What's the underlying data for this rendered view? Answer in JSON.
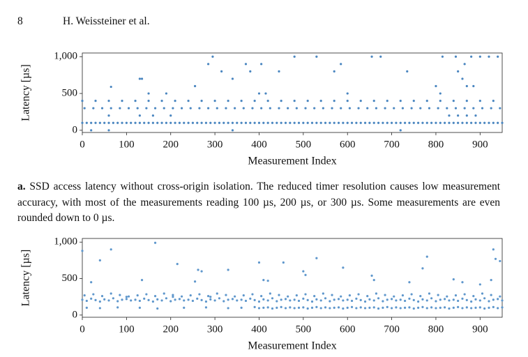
{
  "page_number": "8",
  "running_head": "H. Weissteiner et al.",
  "caption": {
    "label": "a.",
    "text": "SSD access latency without cross-origin isolation. The reduced timer resolution causes low measurement accuracy, with most of the measurements reading 100 µs, 200 µs, or 300 µs. Some measurements are even rounded down to 0 µs."
  },
  "chart_data": [
    {
      "type": "scatter",
      "xlabel": "Measurement Index",
      "ylabel": "Latency [µs]",
      "xlim": [
        0,
        950
      ],
      "ylim": [
        -30,
        1050
      ],
      "xticks": [
        0,
        100,
        200,
        300,
        400,
        500,
        600,
        700,
        800,
        900
      ],
      "yticks": [
        0,
        500,
        {
          "value": 1000,
          "label": "1,000"
        }
      ],
      "series": [
        {
          "color": "#4a86c0",
          "x": [
            0,
            10,
            20,
            30,
            40,
            50,
            60,
            70,
            80,
            90,
            100,
            110,
            120,
            130,
            140,
            150,
            160,
            170,
            180,
            190,
            200,
            210,
            220,
            230,
            240,
            250,
            260,
            270,
            280,
            290,
            300,
            310,
            320,
            330,
            340,
            350,
            360,
            370,
            380,
            390,
            400,
            410,
            420,
            430,
            440,
            450,
            460,
            470,
            480,
            490,
            500,
            510,
            520,
            530,
            540,
            550,
            560,
            570,
            580,
            590,
            600,
            610,
            620,
            630,
            640,
            650,
            660,
            670,
            680,
            690,
            700,
            710,
            720,
            730,
            740,
            750,
            760,
            770,
            780,
            790,
            800,
            810,
            820,
            830,
            840,
            850,
            860,
            870,
            880,
            890,
            900,
            910,
            920,
            930,
            940,
            950
          ],
          "values": [
            100,
            100,
            100,
            100,
            100,
            100,
            100,
            100,
            100,
            100,
            100,
            100,
            100,
            100,
            100,
            100,
            100,
            100,
            100,
            100,
            100,
            100,
            100,
            100,
            100,
            100,
            100,
            100,
            100,
            100,
            100,
            100,
            100,
            100,
            100,
            100,
            100,
            100,
            100,
            100,
            100,
            100,
            100,
            100,
            100,
            100,
            100,
            100,
            100,
            100,
            100,
            100,
            100,
            100,
            100,
            100,
            100,
            100,
            100,
            100,
            100,
            100,
            100,
            100,
            100,
            100,
            100,
            100,
            100,
            100,
            100,
            100,
            100,
            100,
            100,
            100,
            100,
            100,
            100,
            100,
            100,
            100,
            100,
            100,
            100,
            100,
            100,
            100,
            100,
            100,
            100,
            100,
            100,
            100,
            100,
            100
          ]
        },
        {
          "color": "#4a86c0",
          "x": [
            5,
            25,
            45,
            65,
            85,
            105,
            125,
            145,
            165,
            185,
            205,
            225,
            245,
            265,
            285,
            305,
            325,
            345,
            365,
            385,
            405,
            425,
            445,
            465,
            485,
            505,
            525,
            545,
            565,
            585,
            605,
            625,
            645,
            665,
            685,
            705,
            725,
            745,
            765,
            785,
            805,
            825,
            845,
            865,
            885,
            905,
            925,
            945
          ],
          "values": [
            300,
            300,
            300,
            300,
            300,
            300,
            300,
            300,
            300,
            300,
            300,
            300,
            300,
            300,
            300,
            300,
            300,
            300,
            300,
            300,
            300,
            300,
            300,
            300,
            300,
            300,
            300,
            300,
            300,
            300,
            300,
            300,
            300,
            300,
            300,
            300,
            300,
            300,
            300,
            300,
            300,
            300,
            300,
            300,
            300,
            300,
            300,
            300
          ]
        },
        {
          "color": "#4a86c0",
          "x": [
            0,
            30,
            60,
            90,
            120,
            150,
            180,
            210,
            240,
            270,
            300,
            330,
            360,
            390,
            420,
            450,
            480,
            510,
            540,
            570,
            600,
            630,
            660,
            690,
            720,
            750,
            780,
            810,
            840,
            870,
            900,
            930
          ],
          "values": [
            400,
            400,
            400,
            400,
            400,
            400,
            400,
            400,
            400,
            400,
            400,
            400,
            400,
            400,
            400,
            400,
            400,
            400,
            400,
            400,
            400,
            400,
            400,
            400,
            400,
            400,
            400,
            400,
            400,
            400,
            400,
            400
          ]
        },
        {
          "color": "#4a86c0",
          "x": [
            65,
            130,
            135,
            150,
            190,
            255,
            285,
            295,
            315,
            340,
            370,
            380,
            400,
            405,
            415,
            445,
            480,
            530,
            570,
            585,
            600,
            655,
            675,
            735,
            800,
            810,
            815,
            845,
            850,
            860,
            865,
            870,
            880,
            885,
            900,
            920,
            940,
            130,
            160,
            200,
            830,
            850,
            870,
            890,
            20,
            60,
            340,
            720,
            60
          ],
          "values": [
            590,
            700,
            700,
            500,
            500,
            600,
            900,
            1000,
            800,
            700,
            900,
            800,
            500,
            900,
            500,
            800,
            1000,
            1000,
            800,
            900,
            500,
            1000,
            1000,
            800,
            600,
            500,
            1000,
            1000,
            800,
            700,
            900,
            600,
            1000,
            600,
            1000,
            1000,
            1000,
            200,
            200,
            200,
            200,
            200,
            200,
            200,
            0,
            0,
            0,
            0,
            200
          ]
        }
      ]
    },
    {
      "type": "scatter",
      "xlabel": "Measurement Index",
      "ylabel": "Latency [µs]",
      "xlim": [
        0,
        950
      ],
      "ylim": [
        -30,
        1050
      ],
      "xticks": [
        0,
        100,
        200,
        300,
        400,
        500,
        600,
        700,
        800,
        900
      ],
      "yticks": [
        0,
        500,
        {
          "value": 1000,
          "label": "1,000"
        }
      ],
      "series": [
        {
          "color": "#5f97cc",
          "x": [
            10,
            40,
            80,
            130,
            170,
            230,
            280,
            330,
            360,
            390,
            400,
            410,
            420,
            430,
            440,
            450,
            460,
            470,
            480,
            490,
            500,
            510,
            520,
            530,
            540,
            550,
            560,
            570,
            580,
            590,
            600,
            610,
            620,
            630,
            640,
            650,
            660,
            670,
            680,
            690,
            700,
            710,
            720,
            730,
            740,
            750,
            760,
            770,
            780,
            790,
            800,
            810,
            820,
            830,
            840,
            850,
            860,
            870,
            880,
            890,
            900,
            910,
            920,
            930,
            940,
            950
          ],
          "values": [
            100,
            95,
            105,
            100,
            90,
            100,
            105,
            95,
            100,
            110,
            95,
            100,
            105,
            90,
            100,
            110,
            95,
            105,
            95,
            100,
            105,
            90,
            100,
            110,
            95,
            105,
            95,
            100,
            105,
            90,
            100,
            110,
            95,
            105,
            95,
            100,
            105,
            90,
            100,
            110,
            95,
            105,
            95,
            100,
            105,
            90,
            100,
            110,
            95,
            105,
            95,
            100,
            105,
            90,
            100,
            110,
            95,
            105,
            95,
            100,
            105,
            90,
            100,
            110,
            95,
            105
          ]
        },
        {
          "color": "#5f97cc",
          "x": [
            0,
            10,
            20,
            30,
            40,
            50,
            60,
            70,
            80,
            90,
            100,
            110,
            120,
            130,
            140,
            150,
            160,
            170,
            180,
            190,
            200,
            210,
            220,
            230,
            240,
            250,
            260,
            270,
            280,
            290,
            300,
            310,
            320,
            330,
            340,
            350,
            360,
            370,
            380,
            390,
            400,
            410,
            420,
            430,
            440,
            450,
            460,
            470,
            480,
            490,
            500,
            510,
            520,
            530,
            540,
            550,
            560,
            570,
            580,
            590,
            600,
            610,
            620,
            630,
            640,
            650,
            660,
            670,
            680,
            690,
            700,
            710,
            720,
            730,
            740,
            750,
            760,
            770,
            780,
            790,
            800,
            810,
            820,
            830,
            840,
            850,
            860,
            870,
            880,
            890,
            900,
            910,
            920,
            930,
            940,
            950
          ],
          "values": [
            210,
            195,
            225,
            205,
            185,
            215,
            200,
            230,
            190,
            210,
            220,
            200,
            210,
            195,
            225,
            205,
            185,
            215,
            200,
            230,
            190,
            210,
            220,
            200,
            210,
            195,
            225,
            205,
            185,
            215,
            200,
            230,
            190,
            210,
            220,
            200,
            210,
            195,
            225,
            205,
            185,
            215,
            200,
            230,
            190,
            210,
            220,
            200,
            210,
            195,
            225,
            205,
            185,
            215,
            200,
            230,
            190,
            210,
            220,
            200,
            210,
            195,
            225,
            205,
            185,
            215,
            200,
            230,
            190,
            210,
            220,
            200,
            210,
            195,
            225,
            205,
            185,
            215,
            200,
            230,
            190,
            210,
            220,
            200,
            210,
            195,
            225,
            205,
            185,
            215,
            200,
            230,
            190,
            210,
            220,
            200
          ]
        },
        {
          "color": "#5f97cc",
          "x": [
            5,
            25,
            45,
            65,
            85,
            105,
            125,
            145,
            165,
            185,
            205,
            225,
            245,
            265,
            285,
            305,
            325,
            345,
            365,
            385,
            405,
            425,
            445,
            465,
            485,
            505,
            525,
            545,
            565,
            585,
            605,
            625,
            645,
            665,
            685,
            705,
            725,
            745,
            765,
            785,
            805,
            825,
            845,
            865,
            885,
            905,
            925,
            945
          ],
          "values": [
            270,
            285,
            260,
            295,
            275,
            255,
            270,
            285,
            260,
            295,
            275,
            255,
            270,
            285,
            260,
            295,
            275,
            255,
            270,
            285,
            260,
            295,
            275,
            255,
            270,
            285,
            260,
            295,
            275,
            255,
            270,
            285,
            260,
            295,
            275,
            255,
            270,
            285,
            260,
            295,
            275,
            255,
            270,
            285,
            260,
            295,
            275,
            255
          ]
        },
        {
          "color": "#5f97cc",
          "x": [
            0,
            20,
            40,
            65,
            100,
            135,
            165,
            205,
            215,
            255,
            262,
            270,
            290,
            330,
            400,
            410,
            420,
            455,
            500,
            505,
            530,
            590,
            655,
            660,
            740,
            770,
            780,
            840,
            860,
            900,
            925,
            930,
            935,
            945
          ],
          "values": [
            880,
            450,
            750,
            900,
            250,
            480,
            990,
            250,
            700,
            460,
            620,
            600,
            250,
            620,
            720,
            480,
            470,
            720,
            600,
            550,
            780,
            650,
            540,
            480,
            450,
            640,
            800,
            490,
            450,
            420,
            480,
            900,
            770,
            740
          ]
        }
      ]
    }
  ]
}
